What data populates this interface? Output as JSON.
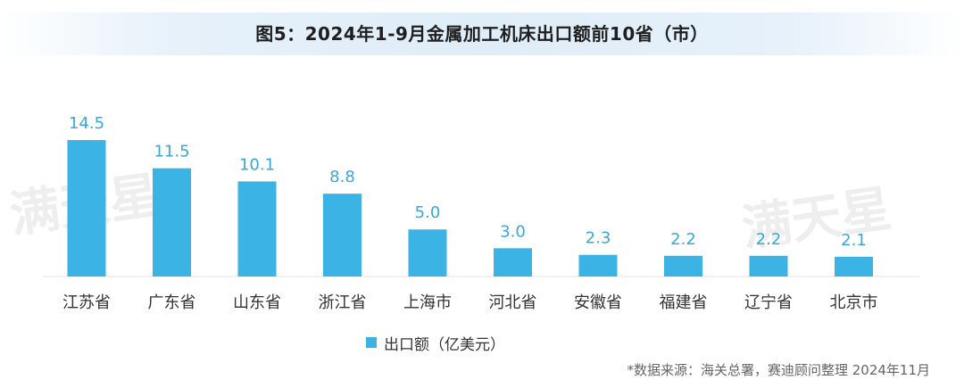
{
  "title": "图5：2024年1-9月金属加工机床出口额前10省（市）",
  "legend": {
    "label": "出口额（亿美元）",
    "color": "#3bb3e4"
  },
  "source": "*数据来源：海关总署，赛迪顾问整理  2024年11月",
  "watermark": "满天星",
  "chart_data": {
    "type": "bar",
    "categories": [
      "江苏省",
      "广东省",
      "山东省",
      "浙江省",
      "上海市",
      "河北省",
      "安徽省",
      "福建省",
      "辽宁省",
      "北京市"
    ],
    "series": [
      {
        "name": "出口额（亿美元）",
        "values": [
          14.5,
          11.5,
          10.1,
          8.8,
          5.0,
          3.0,
          2.3,
          2.2,
          2.2,
          2.1
        ],
        "labels": [
          "14.5",
          "11.5",
          "10.1",
          "8.8",
          "5.0",
          "3.0",
          "2.3",
          "2.2",
          "2.2",
          "2.1"
        ]
      }
    ],
    "ylim": [
      0,
      14.5
    ],
    "grid": false,
    "legend_position": "bottom-left",
    "bar_color": "#3bb3e4",
    "label_color": "#3aa8dc"
  }
}
